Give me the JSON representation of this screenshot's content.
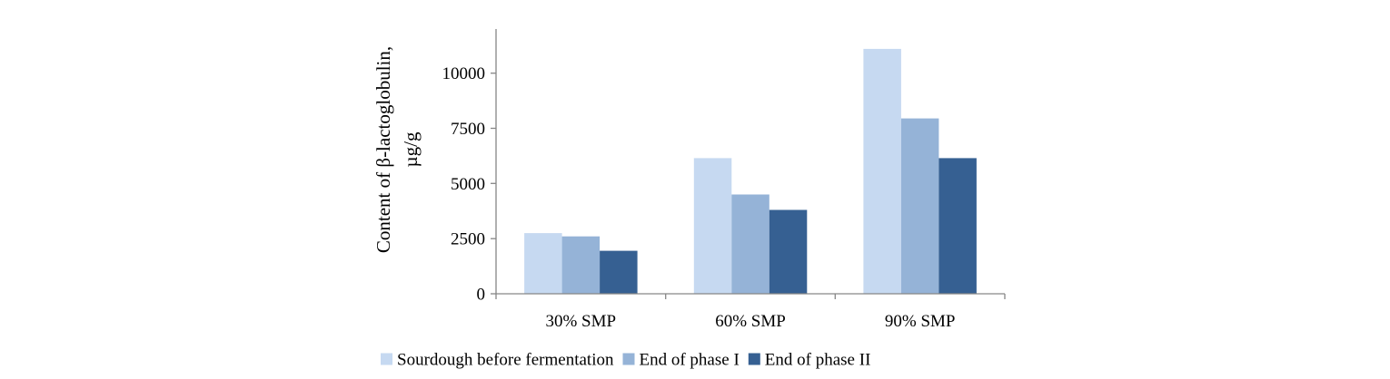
{
  "chart_data": {
    "type": "bar",
    "categories": [
      "30% SMP",
      "60% SMP",
      "90% SMP"
    ],
    "series": [
      {
        "name": "Sourdough before fermentation",
        "values": [
          2750,
          6150,
          11100
        ],
        "color": "#c6d9f1"
      },
      {
        "name": "End of phase I",
        "values": [
          2600,
          4500,
          7950
        ],
        "color": "#95b3d7"
      },
      {
        "name": "End of phase II",
        "values": [
          1950,
          3800,
          6150
        ],
        "color": "#366092"
      }
    ],
    "title": "",
    "xlabel": "",
    "ylabel_lines": [
      "Content of β-lactoglobulin,",
      "µg/g"
    ],
    "ylim": [
      0,
      12000
    ],
    "yticks": [
      0,
      2500,
      5000,
      7500,
      10000
    ],
    "ytick_labels": [
      "0",
      "2500",
      "5000",
      "7500",
      "10000"
    ],
    "grid": false,
    "legend_position": "bottom"
  }
}
